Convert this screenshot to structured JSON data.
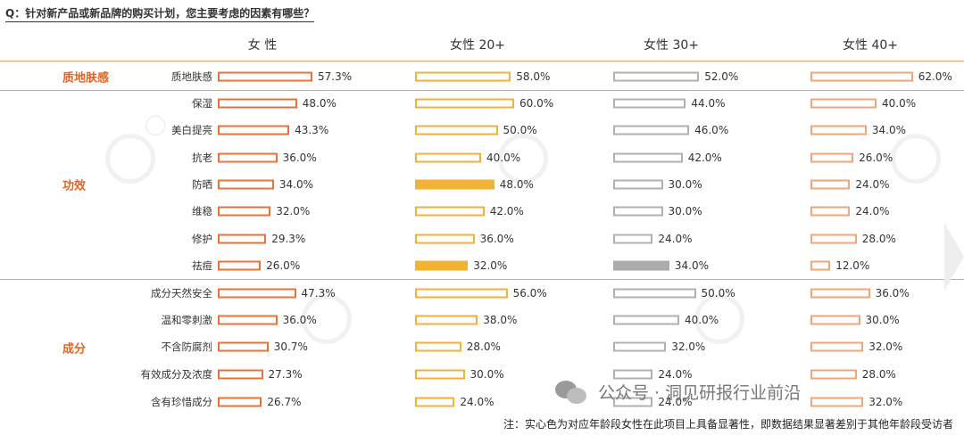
{
  "question": "Q：针对新产品或新品牌的购买计划，您主要考虑的因素有哪些？",
  "footnote": "注：实心色为对应年龄段女性在此项目上具备显著性，即数据结果显著差别于其他年龄段受访者",
  "watermark_text": "公众号 · 洞见研报行业前沿",
  "colors": {
    "accent_orange": "#e8621e",
    "bar_border_col0": "#e8733a",
    "bar_border_col1": "#f2b23a",
    "bar_border_col3": "#f0a57a",
    "bar_border_col2": "#b0b0b0",
    "filled_gold": "#f2b233",
    "filled_gray": "#ababab"
  },
  "chart_data": {
    "type": "bar",
    "orientation": "horizontal",
    "columns": [
      "女 性",
      "女性 20+",
      "女性 30+",
      "女性 40+"
    ],
    "groups": [
      {
        "name": "质地肤感",
        "rows": [
          "质地肤感"
        ]
      },
      {
        "name": "功效",
        "rows": [
          "保湿",
          "美白提亮",
          "抗老",
          "防晒",
          "维稳",
          "修护",
          "祛痘"
        ]
      },
      {
        "name": "成分",
        "rows": [
          "成分天然安全",
          "温和零刺激",
          "不含防腐剂",
          "有效成分及浓度",
          "含有珍惜成分"
        ]
      }
    ],
    "categories": [
      "质地肤感",
      "保湿",
      "美白提亮",
      "抗老",
      "防晒",
      "维稳",
      "修护",
      "祛痘",
      "成分天然安全",
      "温和零刺激",
      "不含防腐剂",
      "有效成分及浓度",
      "含有珍惜成分"
    ],
    "series": [
      {
        "name": "女 性",
        "values": [
          57.3,
          48.0,
          43.3,
          36.0,
          34.0,
          32.0,
          29.3,
          26.0,
          47.3,
          36.0,
          30.7,
          27.3,
          26.7
        ],
        "labels": [
          "57.3%",
          "48.0%",
          "43.3%",
          "36.0%",
          "34.0%",
          "32.0%",
          "29.3%",
          "26.0%",
          "47.3%",
          "36.0%",
          "30.7%",
          "27.3%",
          "26.7%"
        ],
        "significant": [
          false,
          false,
          false,
          false,
          false,
          false,
          false,
          false,
          false,
          false,
          false,
          false,
          false
        ]
      },
      {
        "name": "女性 20+",
        "values": [
          58.0,
          60.0,
          50.0,
          40.0,
          48.0,
          42.0,
          36.0,
          32.0,
          56.0,
          38.0,
          28.0,
          30.0,
          24.0
        ],
        "labels": [
          "58.0%",
          "60.0%",
          "50.0%",
          "40.0%",
          "48.0%",
          "42.0%",
          "36.0%",
          "32.0%",
          "56.0%",
          "38.0%",
          "28.0%",
          "30.0%",
          "24.0%"
        ],
        "significant": [
          false,
          false,
          false,
          false,
          true,
          false,
          false,
          true,
          false,
          false,
          false,
          false,
          false
        ]
      },
      {
        "name": "女性 30+",
        "values": [
          52.0,
          44.0,
          46.0,
          42.0,
          30.0,
          30.0,
          24.0,
          34.0,
          50.0,
          40.0,
          32.0,
          24.0,
          24.0
        ],
        "labels": [
          "52.0%",
          "44.0%",
          "46.0%",
          "42.0%",
          "30.0%",
          "30.0%",
          "24.0%",
          "34.0%",
          "50.0%",
          "40.0%",
          "32.0%",
          "24.0%",
          "24.0%"
        ],
        "significant": [
          false,
          false,
          false,
          false,
          false,
          false,
          false,
          true,
          false,
          false,
          false,
          false,
          false
        ]
      },
      {
        "name": "女性 40+",
        "values": [
          62.0,
          40.0,
          34.0,
          26.0,
          24.0,
          24.0,
          28.0,
          12.0,
          36.0,
          30.0,
          32.0,
          28.0,
          32.0
        ],
        "labels": [
          "62.0%",
          "40.0%",
          "34.0%",
          "26.0%",
          "24.0%",
          "24.0%",
          "28.0%",
          "12.0%",
          "36.0%",
          "30.0%",
          "32.0%",
          "28.0%",
          "32.0%"
        ],
        "significant": [
          false,
          false,
          false,
          false,
          false,
          false,
          false,
          false,
          false,
          false,
          false,
          false,
          false
        ]
      }
    ],
    "xlim": [
      0,
      100
    ],
    "grid": false,
    "legend": "none"
  }
}
